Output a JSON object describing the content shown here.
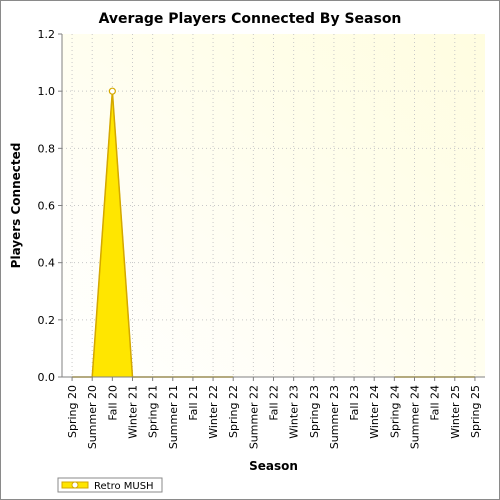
{
  "chart_data": {
    "type": "area",
    "title": "Average Players Connected By Season",
    "xlabel": "Season",
    "ylabel": "Players Connected",
    "categories": [
      "Spring 20",
      "Summer 20",
      "Fall 20",
      "Winter 21",
      "Spring 21",
      "Summer 21",
      "Fall 21",
      "Winter 22",
      "Spring 22",
      "Summer 22",
      "Fall 22",
      "Winter 23",
      "Spring 23",
      "Summer 23",
      "Fall 23",
      "Winter 24",
      "Spring 24",
      "Summer 24",
      "Fall 24",
      "Winter 25",
      "Spring 25"
    ],
    "series": [
      {
        "name": "Retro MUSH",
        "values": [
          0,
          0,
          1.0,
          0,
          0,
          0,
          0,
          0,
          0,
          null,
          null,
          null,
          null,
          null,
          null,
          null,
          0,
          0,
          0,
          0,
          0
        ],
        "color": "#ffe600",
        "stroke": "#d4a800"
      }
    ],
    "ylim": [
      0,
      1.2
    ],
    "yticks": [
      "0.0",
      "0.2",
      "0.4",
      "0.6",
      "0.8",
      "1.0",
      "1.2"
    ],
    "grid": true,
    "legend_position": "bottom-left"
  }
}
